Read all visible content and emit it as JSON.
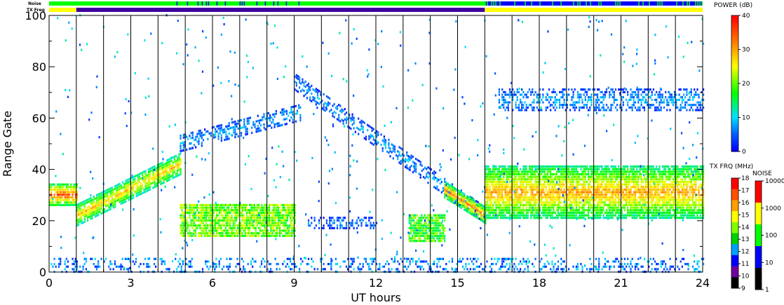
{
  "chart_data": {
    "type": "heatmap",
    "xlabel": "UT hours",
    "ylabel": "Range Gate",
    "xlim": [
      0,
      24
    ],
    "ylim": [
      0,
      100
    ],
    "x_ticks": [
      0,
      3,
      6,
      9,
      12,
      15,
      18,
      21,
      24
    ],
    "y_ticks": [
      0,
      20,
      40,
      60,
      80,
      100
    ],
    "scan_boundaries_hours": [
      1,
      2,
      3,
      4,
      5,
      6,
      7,
      8,
      9,
      10,
      11,
      12,
      13,
      14,
      15,
      16,
      17,
      18,
      19,
      20,
      21,
      22,
      23
    ],
    "top_bars": {
      "noise_label": "Noise",
      "txfreq_label": "TX Freq",
      "noise_segments": [
        {
          "from": 0,
          "to": 4.6,
          "level": "100"
        },
        {
          "from": 4.6,
          "to": 9.2,
          "level": "mixed"
        },
        {
          "from": 9.2,
          "to": 16,
          "level": "100"
        },
        {
          "from": 16,
          "to": 24,
          "level": "10"
        }
      ],
      "txfreq_segments": [
        {
          "from": 0,
          "to": 1,
          "mhz": "14-15"
        },
        {
          "from": 1,
          "to": 16,
          "mhz": "10-11"
        },
        {
          "from": 16,
          "to": 24,
          "mhz": "14-15"
        }
      ]
    },
    "echo_regions": [
      {
        "name": "early-band",
        "x": [
          0,
          1
        ],
        "y_center": 30,
        "y_halfwidth": 4,
        "power_db": 35
      },
      {
        "name": "rising-band",
        "x": [
          1,
          4.8
        ],
        "y_start": 22,
        "y_end": 42,
        "y_halfwidth": 4,
        "power_db": 28
      },
      {
        "name": "upper-arc",
        "x": [
          4.8,
          9.2
        ],
        "y_start": 50,
        "y_end": 62,
        "power_db": 8
      },
      {
        "name": "ground-scatter-block",
        "x": [
          4.8,
          9
        ],
        "y_range": [
          14,
          26
        ],
        "power_db": 20
      },
      {
        "name": "ionospheric-arc",
        "x": [
          9,
          16
        ],
        "y_start": 74,
        "y_end": 22,
        "power_db": 8
      },
      {
        "name": "mid-gate-line",
        "x": [
          9.5,
          12
        ],
        "y_center": 19,
        "power_db": 6
      },
      {
        "name": "late-enhancement",
        "x": [
          13.2,
          14.5
        ],
        "y_range": [
          12,
          22
        ],
        "power_db": 18
      },
      {
        "name": "afternoon-band",
        "x": [
          14.5,
          16
        ],
        "y_start": 32,
        "y_end": 22,
        "power_db": 32
      },
      {
        "name": "evening-band",
        "x": [
          16,
          24
        ],
        "y_center": 31,
        "y_halfwidth": 10,
        "power_db": 30
      },
      {
        "name": "evening-upper",
        "x": [
          16.5,
          24
        ],
        "y_center": 67,
        "y_halfwidth": 4,
        "power_db": 8
      },
      {
        "name": "near-range-scatter",
        "x": [
          0,
          24
        ],
        "y_range": [
          0,
          5
        ],
        "power_db": 6
      }
    ]
  },
  "power_colorbar": {
    "title": "POWER (dB)",
    "ticks": [
      "40",
      "30",
      "20",
      "10",
      "0"
    ],
    "colors": [
      "#ff0000",
      "#ff8000",
      "#ffff00",
      "#00ff00",
      "#00e0ff",
      "#0060ff",
      "#0000ff"
    ]
  },
  "txfreq_colorbar": {
    "title": "TX FRQ (MHz)",
    "ticks": [
      "18",
      "17",
      "16",
      "15",
      "14",
      "13",
      "12",
      "11",
      "10",
      "9"
    ],
    "colors": [
      "#ff0000",
      "#ff5000",
      "#ffa000",
      "#ffff00",
      "#80ff00",
      "#00d000",
      "#00a0ff",
      "#0000ff",
      "#7000a0",
      "#000000"
    ]
  },
  "noise_colorbar": {
    "title": "NOISE",
    "ticks": [
      "10000",
      "1000",
      "100",
      "10",
      "1"
    ],
    "colors": [
      "#ff0000",
      "#ffff00",
      "#00ff00",
      "#0000ff",
      "#000000"
    ]
  }
}
